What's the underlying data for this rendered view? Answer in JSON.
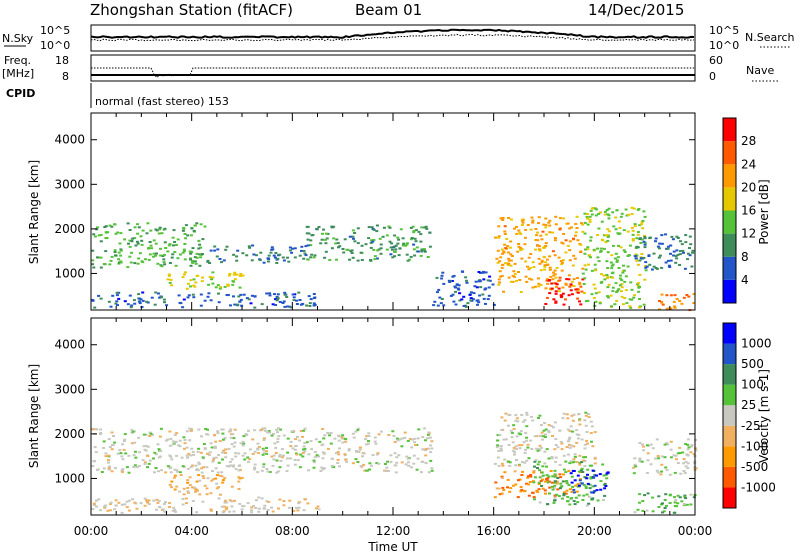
{
  "header": {
    "station": "Zhongshan Station (fitACF)",
    "beam": "Beam 01",
    "date": "14/Dec/2015"
  },
  "strip_labels": {
    "nsky": "N.Sky",
    "nsky_ticks": [
      "10^5",
      "10^0"
    ],
    "nsearch": "N.Search",
    "nsearch_ticks": [
      "10^5",
      "10^0"
    ],
    "freq": "Freq.",
    "freq_unit": "[MHz]",
    "freq_ticks": [
      "18",
      "8"
    ],
    "nave": "Nave",
    "nave_ticks": [
      "60",
      "0"
    ],
    "cpid": "CPID",
    "cpid_text": "normal (fast stereo) 153"
  },
  "chart_data": [
    {
      "type": "heatmap",
      "title": "",
      "ylabel": "Slant Range [km]",
      "xlabel": "",
      "x_ticks": [
        "00:00",
        "04:00",
        "08:00",
        "12:00",
        "16:00",
        "20:00",
        "00:00"
      ],
      "xlim_hours": [
        0,
        24
      ],
      "y_ticks": [
        1000,
        2000,
        3000,
        4000
      ],
      "ylim": [
        180,
        4600
      ],
      "colorbar": {
        "label": "Power [dB]",
        "ticks": [
          "4",
          "8",
          "12",
          "16",
          "20",
          "24",
          "28"
        ],
        "range": [
          0,
          30
        ],
        "colors": [
          "#0000ff",
          "#2255c8",
          "#3d8c5a",
          "#55c23a",
          "#e6c800",
          "#ff9900",
          "#ff5a00",
          "#ff0000"
        ]
      },
      "regions": [
        {
          "x": [
            0.0,
            4.5
          ],
          "y": [
            1150,
            2150
          ],
          "value": 12
        },
        {
          "x": [
            4.5,
            8.5
          ],
          "y": [
            1250,
            1650
          ],
          "value": 8
        },
        {
          "x": [
            8.5,
            13.5
          ],
          "y": [
            1300,
            2100
          ],
          "value": 10
        },
        {
          "x": [
            3.0,
            6.0
          ],
          "y": [
            650,
            1050
          ],
          "value": 16
        },
        {
          "x": [
            0.0,
            9.0
          ],
          "y": [
            250,
            600
          ],
          "value": 6
        },
        {
          "x": [
            13.5,
            16.0
          ],
          "y": [
            250,
            1100
          ],
          "value": 6
        },
        {
          "x": [
            16.0,
            19.5
          ],
          "y": [
            600,
            2300
          ],
          "value": 20
        },
        {
          "x": [
            18.0,
            19.5
          ],
          "y": [
            300,
            900
          ],
          "value": 28
        },
        {
          "x": [
            19.5,
            22.0
          ],
          "y": [
            250,
            2500
          ],
          "value": 14
        },
        {
          "x": [
            21.5,
            24.0
          ],
          "y": [
            1100,
            1900
          ],
          "value": 8
        },
        {
          "x": [
            22.5,
            24.0
          ],
          "y": [
            200,
            600
          ],
          "value": 22
        }
      ]
    },
    {
      "type": "heatmap",
      "title": "",
      "ylabel": "Slant Range [km]",
      "xlabel": "Time UT",
      "x_ticks": [
        "00:00",
        "04:00",
        "08:00",
        "12:00",
        "16:00",
        "20:00",
        "00:00"
      ],
      "xlim_hours": [
        0,
        24
      ],
      "y_ticks": [
        1000,
        2000,
        3000,
        4000
      ],
      "ylim": [
        180,
        4600
      ],
      "colorbar": {
        "label": "Velocity [m s-1]",
        "ticks": [
          "1000",
          "500",
          "100",
          "25",
          "-25",
          "-100",
          "-500",
          "-1000"
        ],
        "range": [
          -1200,
          1200
        ],
        "colors": [
          "#ff0000",
          "#ff5a00",
          "#ff9900",
          "#f0b060",
          "#c8c8c0",
          "#55c23a",
          "#3d8c5a",
          "#2255c8",
          "#0000ff"
        ]
      },
      "regions": [
        {
          "x": [
            0.0,
            13.5
          ],
          "y": [
            1150,
            2150
          ],
          "value": 0
        },
        {
          "x": [
            3.0,
            6.0
          ],
          "y": [
            650,
            1100
          ],
          "value": -300
        },
        {
          "x": [
            0.0,
            9.0
          ],
          "y": [
            250,
            600
          ],
          "value": -80
        },
        {
          "x": [
            16.0,
            19.5
          ],
          "y": [
            600,
            1200
          ],
          "value": -600
        },
        {
          "x": [
            17.5,
            20.5
          ],
          "y": [
            400,
            1400
          ],
          "value": 300
        },
        {
          "x": [
            16.0,
            20.0
          ],
          "y": [
            1300,
            2500
          ],
          "value": 0
        },
        {
          "x": [
            19.0,
            20.5
          ],
          "y": [
            700,
            1200
          ],
          "value": 1000
        },
        {
          "x": [
            21.5,
            24.0
          ],
          "y": [
            250,
            700
          ],
          "value": 300
        },
        {
          "x": [
            21.5,
            24.0
          ],
          "y": [
            1100,
            1900
          ],
          "value": 0
        }
      ]
    }
  ]
}
